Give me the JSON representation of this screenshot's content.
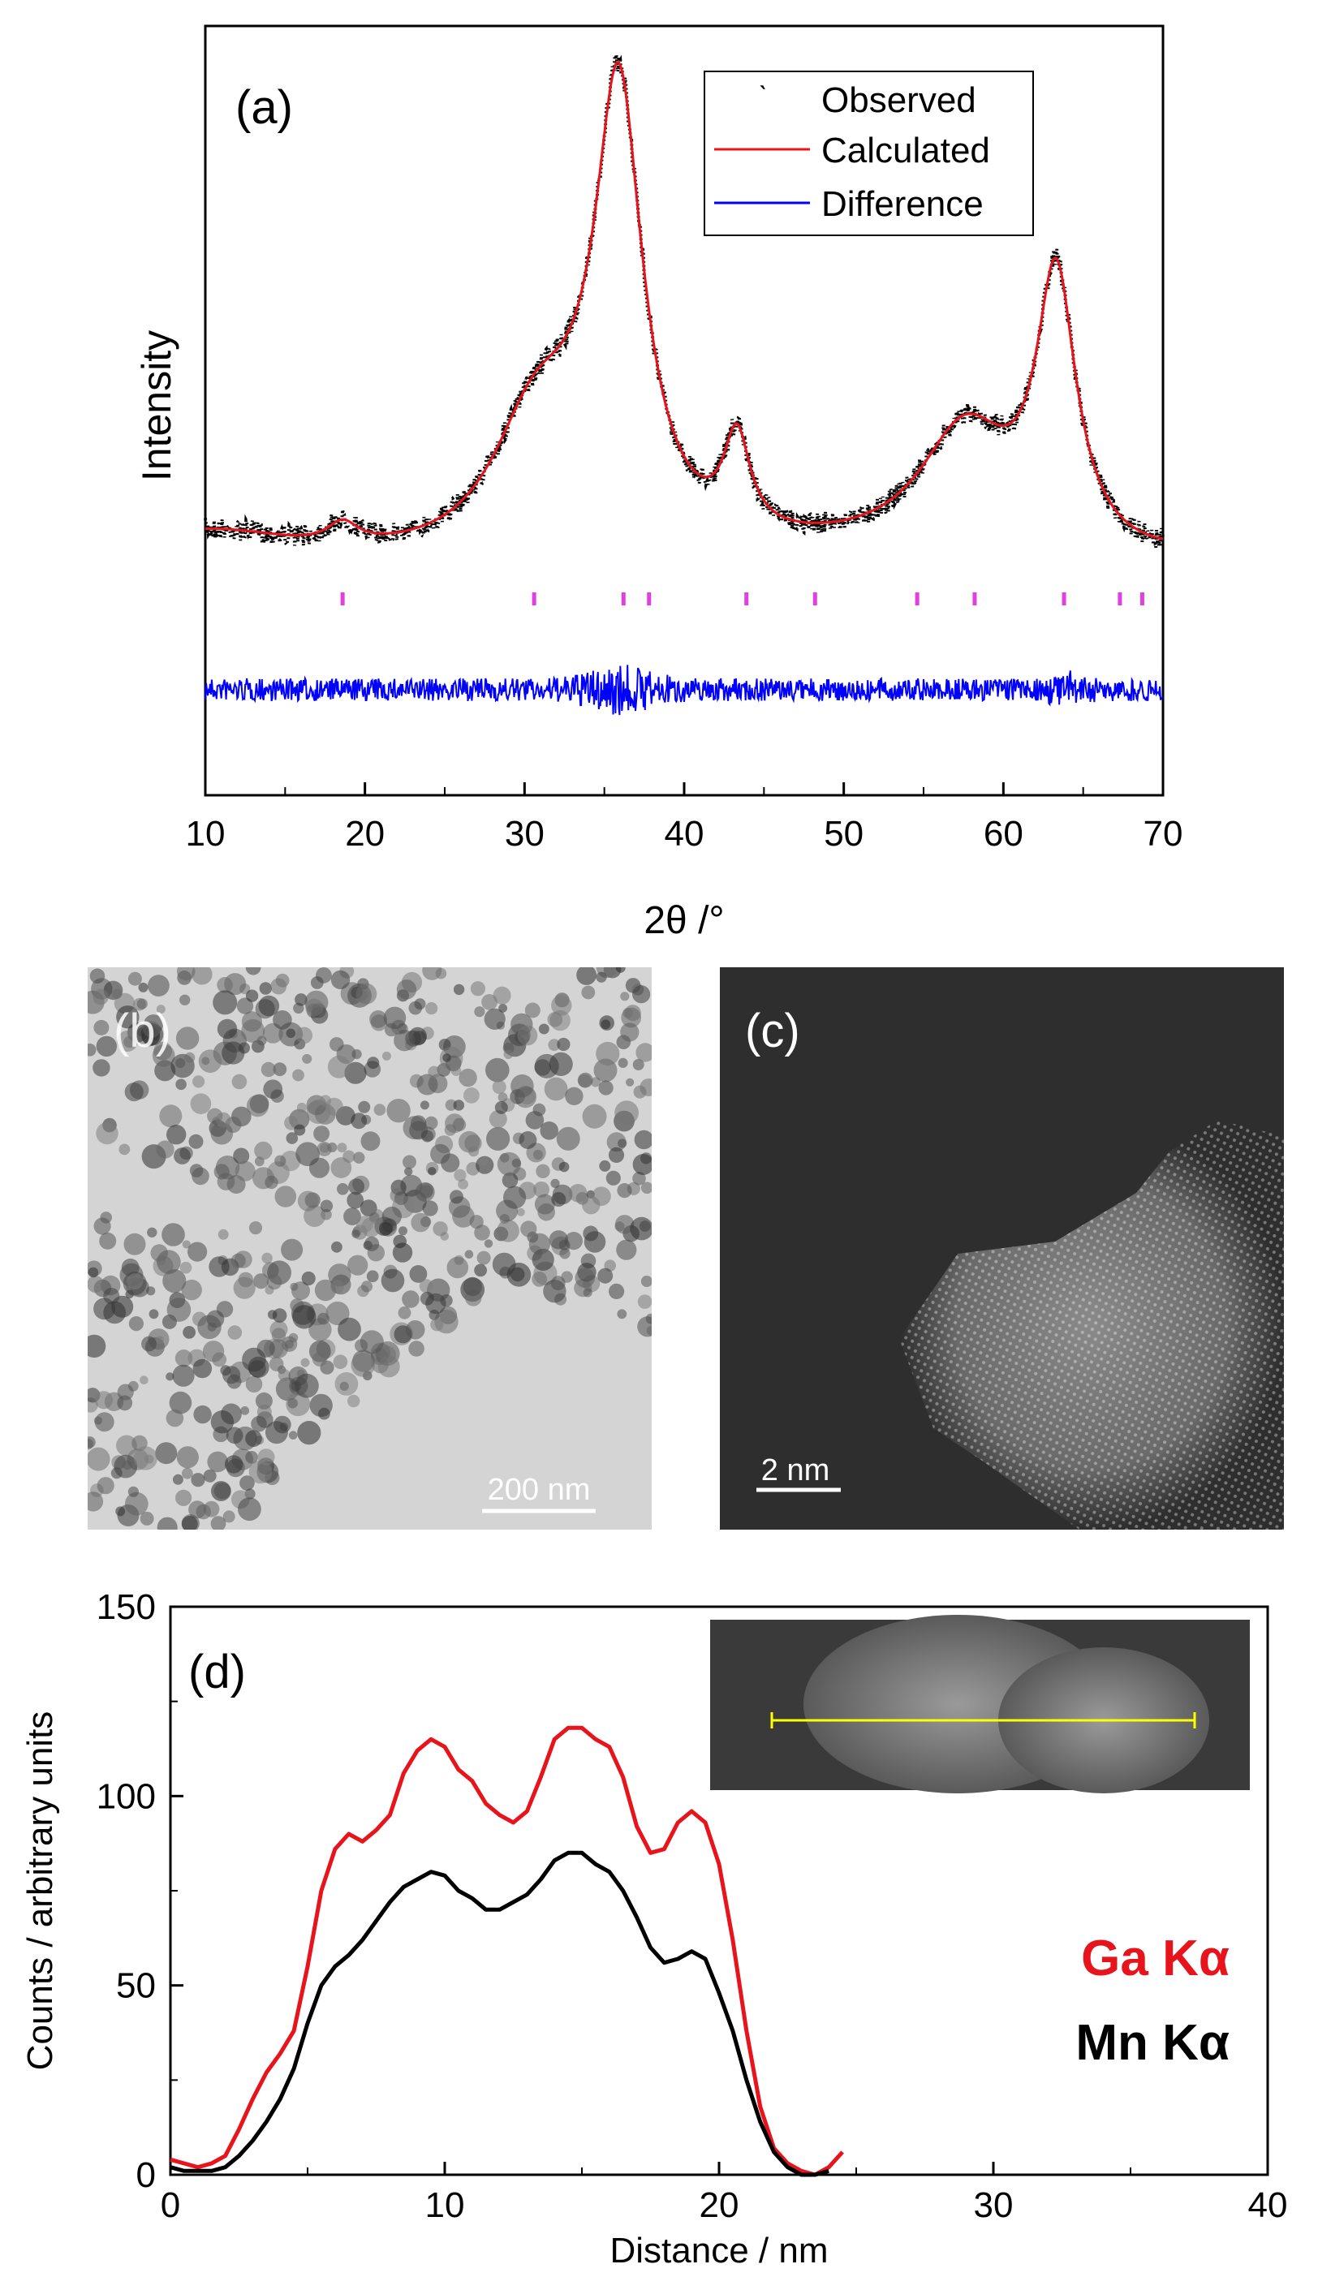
{
  "panel_a": {
    "label": "(a)",
    "legend": [
      "Observed",
      "Calculated",
      "Difference"
    ],
    "colors": {
      "observed": "#000000",
      "calculated": "#e8141c",
      "difference": "#0000ff",
      "ticks": "#e040e0"
    }
  },
  "panel_b": {
    "label": "(b)",
    "scale_bar": "200 nm"
  },
  "panel_c": {
    "label": "(c)",
    "scale_bar": "2 nm"
  },
  "panel_d": {
    "label": "(d)",
    "legend": [
      "Ga Kα",
      "Mn Kα"
    ],
    "colors": {
      "ga": "#e8141c",
      "mn": "#000000",
      "line_scan": "#ffff00"
    }
  },
  "chart_data": [
    {
      "id": "a",
      "type": "line",
      "xlabel": "2θ /°",
      "ylabel": "Intensity",
      "xlim": [
        10,
        70
      ],
      "x_ticks": [
        10,
        20,
        30,
        40,
        50,
        60,
        70
      ],
      "y_ticks_labeled": false,
      "reflection_positions": [
        18.6,
        30.6,
        36.2,
        37.8,
        43.9,
        48.2,
        54.6,
        58.2,
        63.8,
        67.3,
        68.7
      ],
      "series": [
        {
          "name": "Observed",
          "style": "scatter-noisy",
          "peaks": [
            [
              18.6,
              0.05
            ],
            [
              30.6,
              0.22
            ],
            [
              35.9,
              1.0
            ],
            [
              43.3,
              0.22
            ],
            [
              57.6,
              0.28
            ],
            [
              63.3,
              0.62
            ]
          ]
        },
        {
          "name": "Calculated",
          "style": "line",
          "peaks": [
            [
              18.6,
              0.05
            ],
            [
              30.6,
              0.22
            ],
            [
              35.9,
              1.0
            ],
            [
              43.3,
              0.22
            ],
            [
              57.6,
              0.28
            ],
            [
              63.3,
              0.62
            ]
          ]
        },
        {
          "name": "Difference",
          "style": "line-noisy"
        }
      ]
    },
    {
      "id": "d",
      "type": "line",
      "xlabel": "Distance / nm",
      "ylabel": "Counts / arbitrary units",
      "xlim": [
        0,
        40
      ],
      "ylim": [
        0,
        150
      ],
      "x_ticks": [
        0,
        10,
        20,
        30,
        40
      ],
      "y_ticks": [
        0,
        50,
        100,
        150
      ],
      "series": [
        {
          "name": "Ga Kα",
          "x": [
            0,
            0.5,
            1,
            1.5,
            2,
            2.5,
            3,
            3.5,
            4,
            4.5,
            5,
            5.5,
            6,
            6.5,
            7,
            7.5,
            8,
            8.5,
            9,
            9.5,
            10,
            10.5,
            11,
            11.5,
            12,
            12.5,
            13,
            13.5,
            14,
            14.5,
            15,
            15.5,
            16,
            16.5,
            17,
            17.5,
            18,
            18.5,
            19,
            19.5,
            20,
            20.5,
            21,
            21.5,
            22,
            22.5,
            23,
            23.5,
            24,
            24.5
          ],
          "values": [
            4,
            3,
            2,
            3,
            5,
            12,
            20,
            27,
            32,
            38,
            55,
            75,
            86,
            90,
            88,
            91,
            95,
            106,
            112,
            115,
            113,
            107,
            104,
            98,
            95,
            93,
            96,
            105,
            115,
            118,
            118,
            115,
            113,
            105,
            92,
            85,
            86,
            93,
            96,
            93,
            82,
            62,
            38,
            18,
            7,
            3,
            1,
            0,
            2,
            6
          ]
        },
        {
          "name": "Mn Kα",
          "x": [
            0,
            0.5,
            1,
            1.5,
            2,
            2.5,
            3,
            3.5,
            4,
            4.5,
            5,
            5.5,
            6,
            6.5,
            7,
            7.5,
            8,
            8.5,
            9,
            9.5,
            10,
            10.5,
            11,
            11.5,
            12,
            12.5,
            13,
            13.5,
            14,
            14.5,
            15,
            15.5,
            16,
            16.5,
            17,
            17.5,
            18,
            18.5,
            19,
            19.5,
            20,
            20.5,
            21,
            21.5,
            22,
            22.5,
            23,
            23.5,
            24
          ],
          "values": [
            2,
            1,
            1,
            1,
            2,
            5,
            9,
            14,
            20,
            28,
            40,
            50,
            55,
            58,
            62,
            67,
            72,
            76,
            78,
            80,
            79,
            75,
            73,
            70,
            70,
            72,
            74,
            78,
            83,
            85,
            85,
            82,
            80,
            75,
            68,
            60,
            56,
            57,
            59,
            57,
            48,
            38,
            25,
            14,
            6,
            2,
            0,
            0,
            1
          ]
        }
      ]
    }
  ]
}
